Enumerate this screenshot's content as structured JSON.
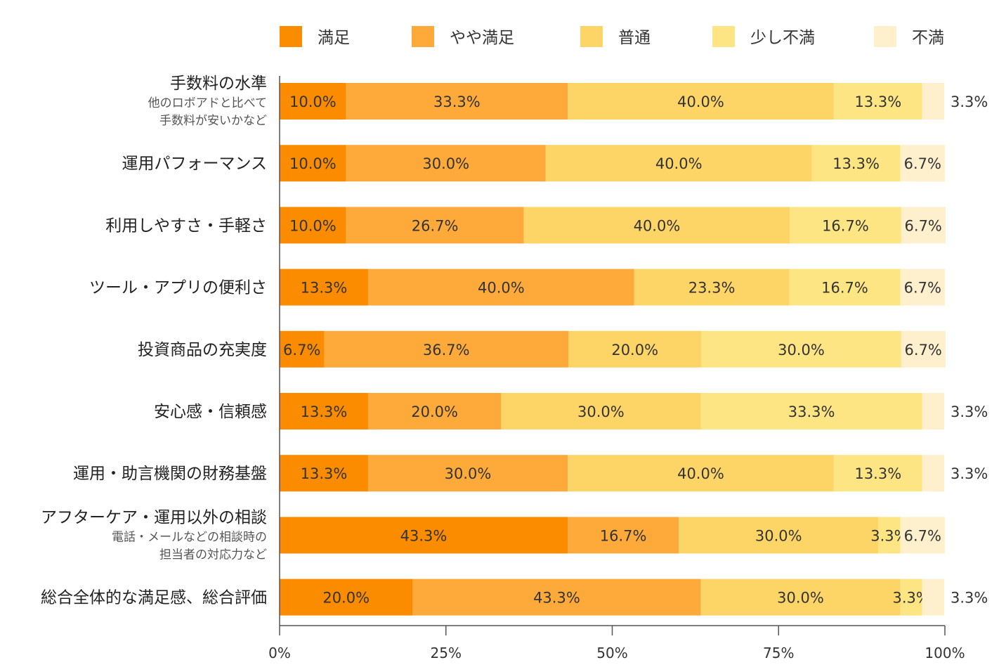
{
  "chart_data": {
    "type": "bar",
    "orientation": "horizontal",
    "stacked": true,
    "xlim": [
      0,
      100
    ],
    "x_ticks": [
      "0%",
      "25%",
      "50%",
      "75%",
      "100%"
    ],
    "legend_position": "top",
    "series": [
      {
        "name": "満足",
        "color": "#FB8C00",
        "values": [
          10.0,
          10.0,
          10.0,
          13.3,
          6.7,
          13.3,
          13.3,
          43.3,
          20.0
        ],
        "labels": [
          "10.0%",
          "10.0%",
          "10.0%",
          "13.3%",
          "6.7%",
          "13.3%",
          "13.3%",
          "43.3%",
          "20.0%"
        ]
      },
      {
        "name": "やや満足",
        "color": "#FDAA3A",
        "values": [
          33.3,
          30.0,
          26.7,
          40.0,
          36.7,
          20.0,
          30.0,
          16.7,
          43.3
        ],
        "labels": [
          "33.3%",
          "30.0%",
          "26.7%",
          "40.0%",
          "36.7%",
          "20.0%",
          "30.0%",
          "16.7%",
          "43.3%"
        ]
      },
      {
        "name": "普通",
        "color": "#FDD466",
        "values": [
          40.0,
          40.0,
          40.0,
          23.3,
          20.0,
          30.0,
          40.0,
          30.0,
          30.0
        ],
        "labels": [
          "40.0%",
          "40.0%",
          "40.0%",
          "23.3%",
          "20.0%",
          "30.0%",
          "40.0%",
          "30.0%",
          "30.0%"
        ]
      },
      {
        "name": "少し不満",
        "color": "#FEE583",
        "values": [
          13.3,
          13.3,
          16.7,
          16.7,
          30.0,
          33.3,
          13.3,
          3.3,
          3.3
        ],
        "labels": [
          "13.3%",
          "13.3%",
          "16.7%",
          "16.7%",
          "30.0%",
          "33.3%",
          "13.3%",
          "3.3%",
          "3.3%"
        ]
      },
      {
        "name": "不満",
        "color": "#FEF0CC",
        "values": [
          3.3,
          6.7,
          6.7,
          6.7,
          6.7,
          3.3,
          3.3,
          6.7,
          3.3
        ],
        "labels": [
          "3.3%",
          "6.7%",
          "6.7%",
          "6.7%",
          "6.7%",
          "3.3%",
          "3.3%",
          "6.7%",
          "3.3%"
        ]
      }
    ],
    "categories": [
      {
        "label": "手数料の水準",
        "sub": [
          "他のロボアドと比べて",
          "手数料が安いかなど"
        ]
      },
      {
        "label": "運用パフォーマンス",
        "sub": []
      },
      {
        "label": "利用しやすさ・手軽さ",
        "sub": []
      },
      {
        "label": "ツール・アプリの便利さ",
        "sub": []
      },
      {
        "label": "投資商品の充実度",
        "sub": []
      },
      {
        "label": "安心感・信頼感",
        "sub": []
      },
      {
        "label": "運用・助言機関の財務基盤",
        "sub": []
      },
      {
        "label": "アフターケア・運用以外の相談",
        "sub": [
          "電話・メールなどの相談時の",
          "担当者の対応力など"
        ]
      },
      {
        "label": "総合全体的な満足感、総合評価",
        "sub": []
      }
    ]
  }
}
